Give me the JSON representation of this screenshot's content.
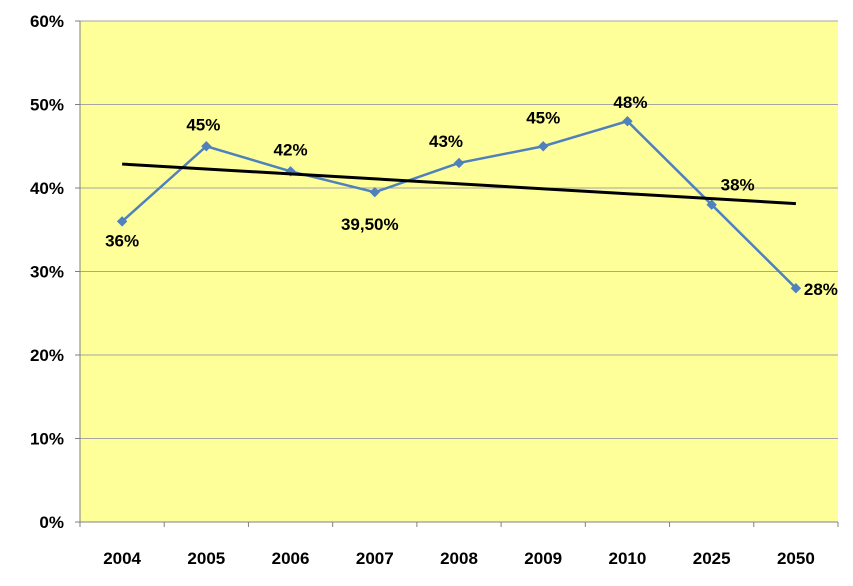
{
  "chart_data": {
    "type": "line",
    "categories": [
      "2004",
      "2005",
      "2006",
      "2007",
      "2008",
      "2009",
      "2010",
      "2025",
      "2050"
    ],
    "series": [
      {
        "values": [
          36,
          45,
          42,
          39.5,
          43,
          45,
          48,
          38,
          28
        ],
        "data_labels": [
          "36%",
          "45%",
          "42%",
          "39,50%",
          "43%",
          "45%",
          "48%",
          "38%",
          "28%"
        ],
        "color": "#4F81BD",
        "marker": "diamond"
      }
    ],
    "trendline": {
      "type": "linear",
      "color": "#000000"
    },
    "y_ticks": [
      "0%",
      "10%",
      "20%",
      "30%",
      "40%",
      "50%",
      "60%"
    ],
    "ylim": [
      0,
      60
    ],
    "grid": true,
    "legend": "none",
    "plot_background": "#FFFF99",
    "gridline_color": "#A6A6A6"
  }
}
